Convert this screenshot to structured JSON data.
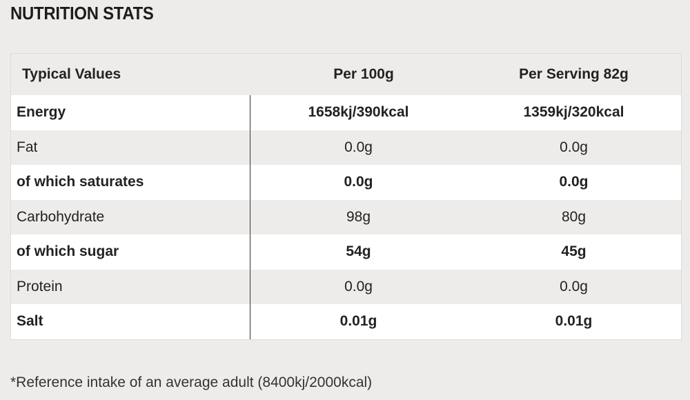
{
  "title": "NUTRITION STATS",
  "table": {
    "headers": [
      "Typical Values",
      "Per 100g",
      "Per Serving 82g"
    ],
    "rows": [
      {
        "label": "Energy",
        "per100": "1658kj/390kcal",
        "serving": "1359kj/320kcal",
        "bold": true
      },
      {
        "label": "Fat",
        "per100": "0.0g",
        "serving": "0.0g",
        "bold": false
      },
      {
        "label": "of which saturates",
        "per100": "0.0g",
        "serving": "0.0g",
        "bold": true
      },
      {
        "label": "Carbohydrate",
        "per100": "98g",
        "serving": "80g",
        "bold": false
      },
      {
        "label": "of which sugar",
        "per100": "54g",
        "serving": "45g",
        "bold": true
      },
      {
        "label": "Protein",
        "per100": "0.0g",
        "serving": "0.0g",
        "bold": false
      },
      {
        "label": "Salt",
        "per100": "0.01g",
        "serving": "0.01g",
        "bold": true
      }
    ]
  },
  "footnote": "*Reference intake of an average adult (8400kj/2000kcal)"
}
